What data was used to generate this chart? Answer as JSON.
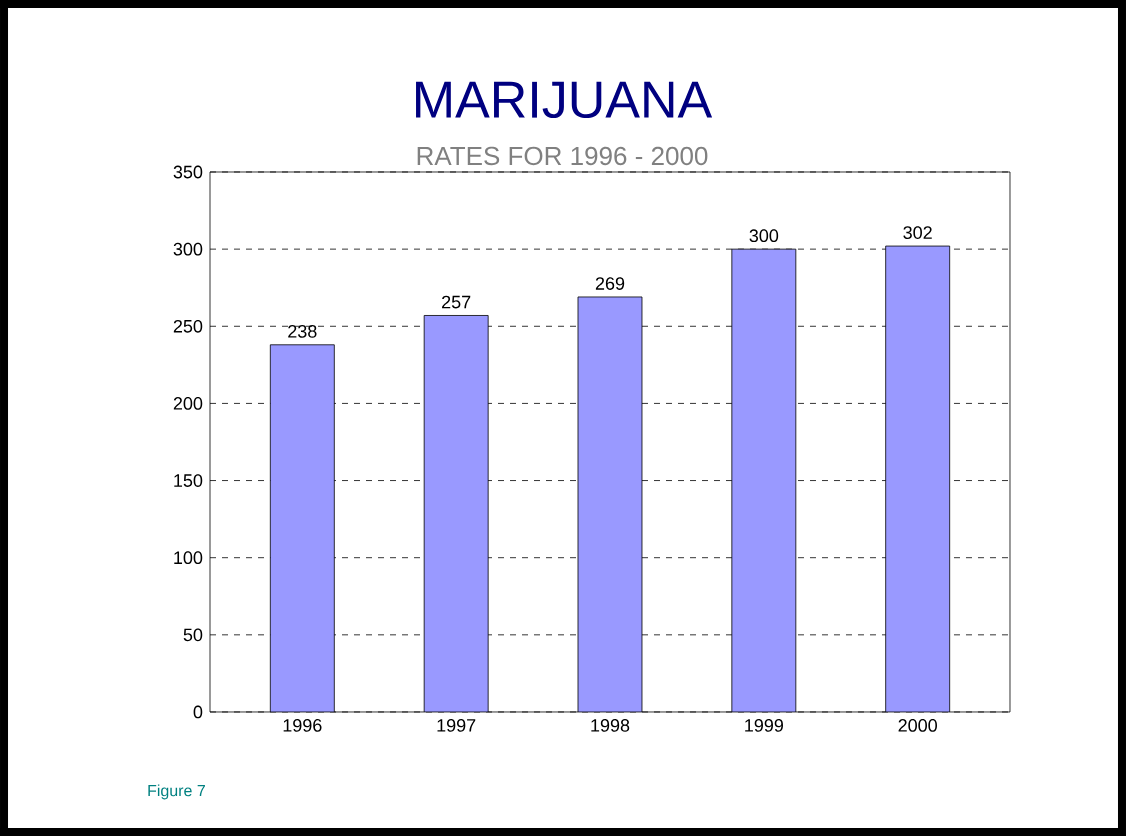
{
  "chart_data": {
    "type": "bar",
    "title": "MARIJUANA",
    "subtitle": "RATES FOR 1996 - 2000",
    "categories": [
      "1996",
      "1997",
      "1998",
      "1999",
      "2000"
    ],
    "values": [
      238,
      257,
      269,
      300,
      302
    ],
    "color": "#9999ff",
    "ylim": [
      0,
      350
    ],
    "yticks": [
      0,
      50,
      100,
      150,
      200,
      250,
      300,
      350
    ],
    "grid": "y",
    "data_labels": true,
    "annotations": [
      "Figure 7"
    ]
  }
}
